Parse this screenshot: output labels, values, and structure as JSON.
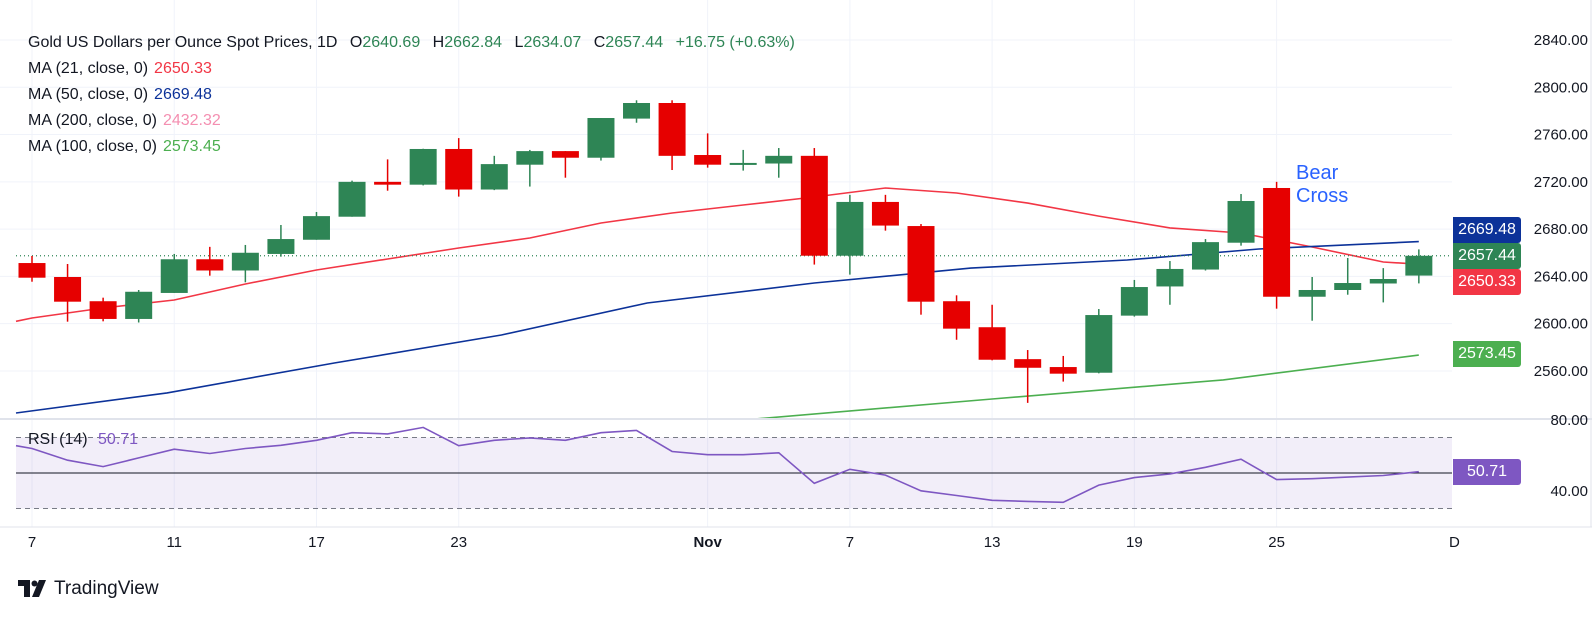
{
  "header": {
    "title": "Gold US Dollars per Ounce Spot Prices, 1D",
    "open_label": "O",
    "open": "2640.69",
    "high_label": "H",
    "high": "2662.84",
    "low_label": "L",
    "low": "2634.07",
    "close_label": "C",
    "close": "2657.44",
    "change": "+16.75 (+0.63%)"
  },
  "indicators": [
    {
      "label": "MA (21, close, 0)",
      "value": "2650.33",
      "color": "#f23645"
    },
    {
      "label": "MA (50, close, 0)",
      "value": "2669.48",
      "color": "#0c3299"
    },
    {
      "label": "MA (200, close, 0)",
      "value": "2432.32",
      "color": "#f48fb1"
    },
    {
      "label": "MA (100, close, 0)",
      "value": "2573.45",
      "color": "#4caf50"
    }
  ],
  "rsi_legend": {
    "label": "RSI (14)",
    "value": "50.71"
  },
  "annotation": {
    "line1": "Bear",
    "line2": "Cross"
  },
  "price_tags": [
    {
      "value": "2669.48",
      "color": "#0c3299"
    },
    {
      "value": "2657.44",
      "color": "#2e8555"
    },
    {
      "value": "2650.33",
      "color": "#f23645"
    },
    {
      "value": "2573.45",
      "color": "#4caf50"
    },
    {
      "value": "50.71",
      "color": "#7e57c2"
    }
  ],
  "branding": {
    "name": "TradingView"
  },
  "chart_data": {
    "type": "candlestick",
    "title": "Gold US Dollars per Ounce Spot Prices, 1D",
    "ylim": [
      2521,
      2874
    ],
    "y_ticks": [
      "2840.00",
      "2800.00",
      "2760.00",
      "2720.00",
      "2680.00",
      "2640.00",
      "2600.00",
      "2560.00"
    ],
    "y_tick_values": [
      2840,
      2800,
      2760,
      2720,
      2680,
      2640,
      2600,
      2560
    ],
    "x_labels": [
      {
        "index": 0,
        "label": "7"
      },
      {
        "index": 4,
        "label": "11"
      },
      {
        "index": 8,
        "label": "17"
      },
      {
        "index": 12,
        "label": "23"
      },
      {
        "index": 19,
        "label": "Nov"
      },
      {
        "index": 23,
        "label": "7"
      },
      {
        "index": 27,
        "label": "13"
      },
      {
        "index": 31,
        "label": "19"
      },
      {
        "index": 35,
        "label": "25"
      },
      {
        "index": 40,
        "label": "D"
      }
    ],
    "up_color": "#2e8555",
    "down_color": "#e60000",
    "last_close": 2657.44,
    "candles": [
      [
        2651.3,
        2657.3,
        2635.5,
        2638.9
      ],
      [
        2639.5,
        2650.5,
        2601.7,
        2618.6
      ],
      [
        2619,
        2622,
        2602,
        2604
      ],
      [
        2604,
        2628.5,
        2601,
        2627
      ],
      [
        2626,
        2659,
        2626,
        2654.5
      ],
      [
        2654.5,
        2665,
        2640.6,
        2645
      ],
      [
        2645,
        2666.6,
        2635,
        2660
      ],
      [
        2659,
        2683.5,
        2656.7,
        2671.6
      ],
      [
        2671,
        2694.5,
        2671,
        2691
      ],
      [
        2690.5,
        2721,
        2690.5,
        2720
      ],
      [
        2720,
        2739,
        2712.5,
        2717.6
      ],
      [
        2717.6,
        2748,
        2717,
        2747.8
      ],
      [
        2747.8,
        2757,
        2707.5,
        2713.5
      ],
      [
        2713.5,
        2742,
        2713,
        2735
      ],
      [
        2734.5,
        2747,
        2716,
        2746
      ],
      [
        2746,
        2746,
        2723.5,
        2740.4
      ],
      [
        2740.4,
        2774,
        2738,
        2774
      ],
      [
        2773.5,
        2789,
        2770,
        2786.7
      ],
      [
        2786.7,
        2789,
        2730,
        2742
      ],
      [
        2742.7,
        2761,
        2732,
        2734.5
      ],
      [
        2734.5,
        2747,
        2729.5,
        2736
      ],
      [
        2735.5,
        2748.6,
        2723.5,
        2742
      ],
      [
        2742,
        2748.6,
        2650,
        2657.5
      ],
      [
        2657.5,
        2709,
        2641.5,
        2703
      ],
      [
        2703,
        2709,
        2678.7,
        2683
      ],
      [
        2682.6,
        2684.3,
        2607.6,
        2618.6
      ],
      [
        2619,
        2624,
        2586.4,
        2595.8
      ],
      [
        2597,
        2616,
        2569,
        2569.5
      ],
      [
        2570,
        2577.7,
        2533,
        2562.7
      ],
      [
        2563.3,
        2572.7,
        2551,
        2557.7
      ],
      [
        2558.5,
        2612.4,
        2558,
        2607.3
      ],
      [
        2606.8,
        2637,
        2606,
        2631
      ],
      [
        2631.5,
        2653,
        2616,
        2646.3
      ],
      [
        2645.8,
        2671.6,
        2645,
        2669
      ],
      [
        2668.5,
        2709.7,
        2666,
        2703.8
      ],
      [
        2714.8,
        2720,
        2612.7,
        2622.8
      ],
      [
        2622.8,
        2639.5,
        2602.5,
        2628.5
      ],
      [
        2628.5,
        2655.6,
        2624.5,
        2634.4
      ],
      [
        2634,
        2647,
        2618,
        2637.8
      ],
      [
        2640.69,
        2662.84,
        2634.07,
        2657.44
      ]
    ],
    "moving_averages": [
      {
        "name": "MA 21",
        "color": "#f23645",
        "points": [
          [
            -0.45,
            2602
          ],
          [
            0,
            2604.8
          ],
          [
            2,
            2613.3
          ],
          [
            4,
            2620
          ],
          [
            6,
            2633.6
          ],
          [
            8,
            2645.4
          ],
          [
            10,
            2654.7
          ],
          [
            12,
            2664
          ],
          [
            14,
            2672.5
          ],
          [
            16,
            2685.2
          ],
          [
            18,
            2693.6
          ],
          [
            20,
            2700.4
          ],
          [
            22,
            2707.2
          ],
          [
            24,
            2714.8
          ],
          [
            26,
            2710.6
          ],
          [
            28,
            2702
          ],
          [
            30,
            2691
          ],
          [
            32,
            2681
          ],
          [
            34,
            2676.7
          ],
          [
            36,
            2664.9
          ],
          [
            38,
            2652.2
          ],
          [
            39,
            2650.33
          ]
        ]
      },
      {
        "name": "MA 50",
        "color": "#0c3299",
        "points": [
          [
            -0.45,
            2524.4
          ],
          [
            3.8,
            2541.4
          ],
          [
            8.5,
            2566.7
          ],
          [
            13.2,
            2590.4
          ],
          [
            17.3,
            2617.5
          ],
          [
            22,
            2634.4
          ],
          [
            26.4,
            2647
          ],
          [
            30.8,
            2653.9
          ],
          [
            34.5,
            2663.2
          ],
          [
            39,
            2669.48
          ]
        ]
      },
      {
        "name": "MA 100",
        "color": "#4caf50",
        "points": [
          [
            20,
            2518.5
          ],
          [
            27,
            2536.3
          ],
          [
            33.5,
            2552.4
          ],
          [
            39,
            2573.45
          ]
        ]
      }
    ],
    "rsi": {
      "name": "RSI (14)",
      "color": "#7e57c2",
      "ylim": [
        20,
        88
      ],
      "levels": [
        70,
        50,
        30
      ],
      "y_ticks": [
        "80.00",
        "40.00"
      ],
      "y_tick_values": [
        80,
        40
      ],
      "values": [
        63.8,
        57.2,
        53.6,
        58.5,
        63.4,
        61,
        63.8,
        65.6,
        68.4,
        72.7,
        72,
        75.7,
        65.4,
        68.4,
        69.8,
        68.4,
        72.7,
        74,
        62.1,
        60.3,
        60.3,
        61.4,
        44.2,
        52.1,
        48.8,
        40,
        37.3,
        34.6,
        34,
        33.5,
        43.2,
        47.4,
        49.5,
        53.2,
        57.8,
        46.3,
        46.8,
        47.7,
        48.6,
        50.71
      ]
    },
    "annotation": "Bear Cross"
  }
}
